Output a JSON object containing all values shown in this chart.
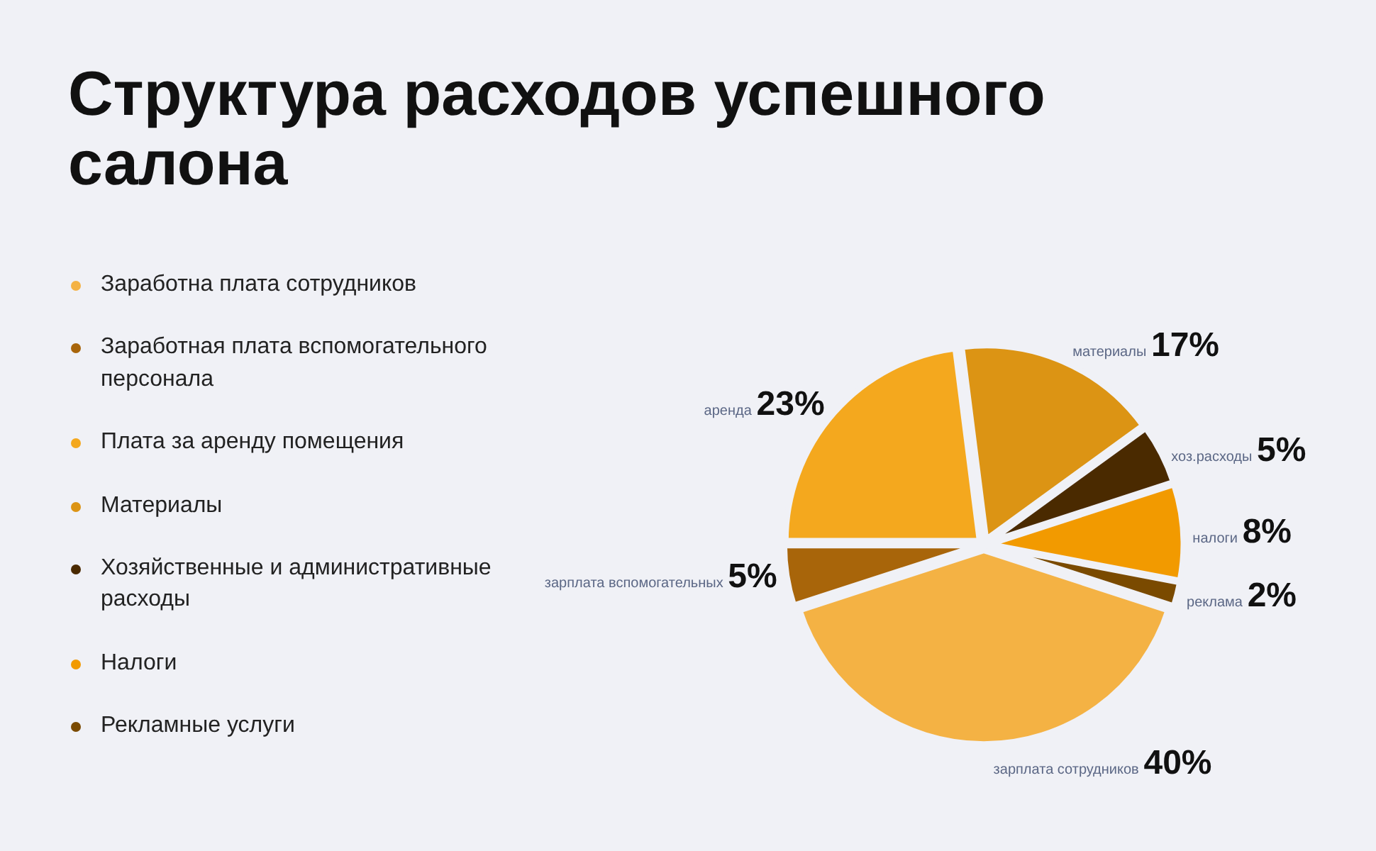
{
  "chart_data": {
    "type": "pie",
    "title": "Структура расходов успешного салона",
    "categories": [
      "Заработна плата сотрудников",
      "Заработная плата вспомогательного персонала",
      "Плата за аренду помещения",
      "Материалы",
      "Хозяйственные и административные расходы",
      "Налоги",
      "Рекламные услуги"
    ],
    "values": [
      40,
      5,
      23,
      17,
      5,
      8,
      2
    ],
    "value_labels": [
      "40%",
      "5%",
      "23%",
      "17%",
      "5%",
      "8%",
      "2%"
    ],
    "colors": [
      "#f4b244",
      "#a8650a",
      "#f4a81e",
      "#dc9414",
      "#4a2a00",
      "#f29a00",
      "#7a4a00"
    ],
    "annotations": [
      "зарплата сотрудников",
      "зарплата вспомогательных",
      "аренда",
      "материалы",
      "хоз.расходы",
      "налоги",
      "реклама"
    ],
    "legend": "left"
  }
}
